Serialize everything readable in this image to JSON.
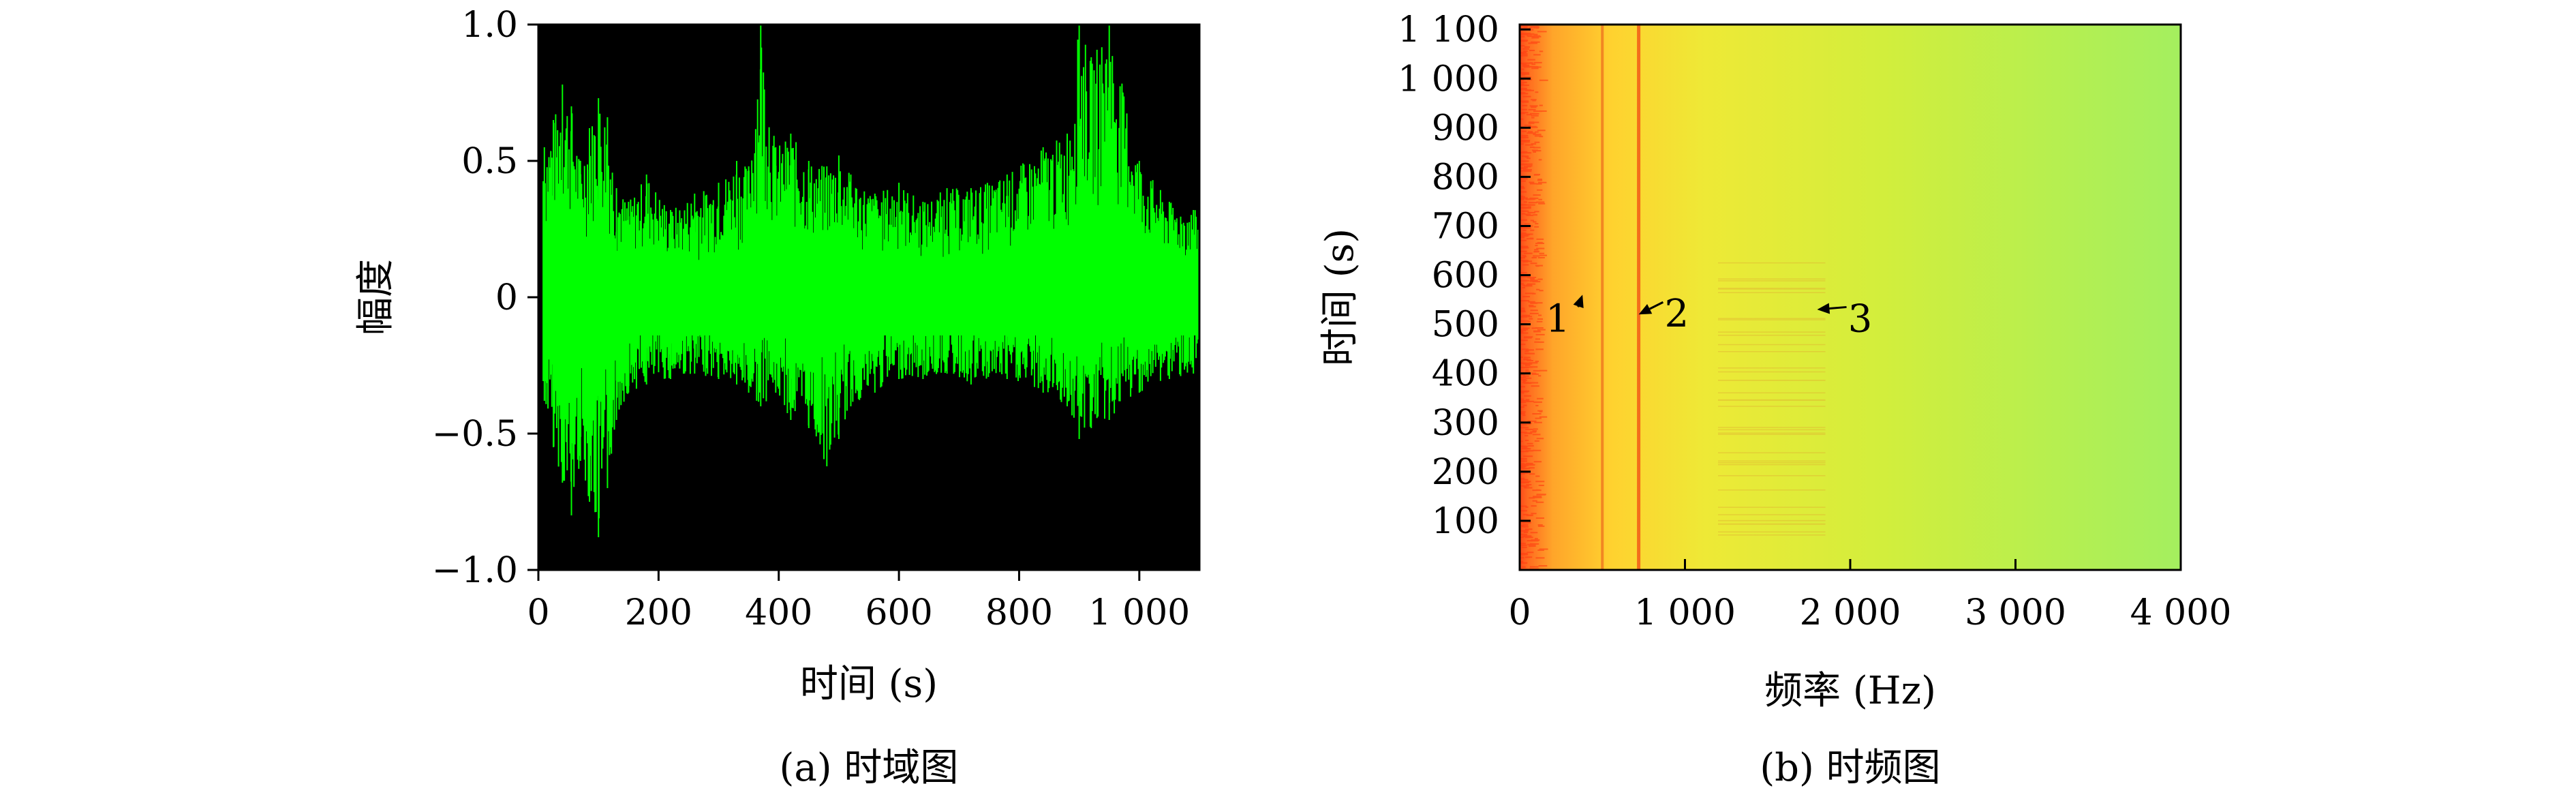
{
  "chart_data": [
    {
      "type": "line",
      "caption": "(a) 时域图",
      "xlabel": "时间 (s)",
      "ylabel": "幅度",
      "xlim": [
        0,
        1100
      ],
      "ylim": [
        -1.0,
        1.0
      ],
      "x_ticks": [
        0,
        200,
        400,
        600,
        800,
        1000
      ],
      "x_tick_labels": [
        "0",
        "200",
        "400",
        "600",
        "800",
        "1 000"
      ],
      "y_ticks": [
        -1.0,
        -0.5,
        0,
        0.5,
        1.0
      ],
      "y_tick_labels": [
        "−1.0",
        "−0.5",
        "0",
        "0.5",
        "1.0"
      ],
      "background": "#000000",
      "series": [
        {
          "color": "#00ff00",
          "envelope_baseline": [
            0.12,
            -0.14
          ],
          "x": [
            10,
            25,
            40,
            55,
            70,
            85,
            100,
            115,
            130,
            150,
            180,
            220,
            260,
            300,
            330,
            350,
            370,
            395,
            420,
            450,
            480,
            500,
            520,
            560,
            600,
            640,
            680,
            720,
            780,
            840,
            880,
            900,
            920,
            950,
            1000,
            1050,
            1090
          ],
          "peaks": [
            0.55,
            0.65,
            0.78,
            0.7,
            0.5,
            0.62,
            0.73,
            0.66,
            0.4,
            0.35,
            0.45,
            0.32,
            0.38,
            0.42,
            0.5,
            0.48,
            1.0,
            0.55,
            0.6,
            0.5,
            0.48,
            0.52,
            0.45,
            0.38,
            0.42,
            0.35,
            0.4,
            0.4,
            0.45,
            0.55,
            0.6,
            1.0,
            0.88,
            1.0,
            0.5,
            0.35,
            0.32
          ],
          "troughs": [
            -0.38,
            -0.55,
            -0.68,
            -0.8,
            -0.6,
            -0.75,
            -0.88,
            -0.7,
            -0.45,
            -0.35,
            -0.32,
            -0.3,
            -0.28,
            -0.3,
            -0.32,
            -0.35,
            -0.4,
            -0.35,
            -0.45,
            -0.48,
            -0.62,
            -0.52,
            -0.4,
            -0.35,
            -0.3,
            -0.3,
            -0.28,
            -0.32,
            -0.3,
            -0.35,
            -0.4,
            -0.52,
            -0.48,
            -0.45,
            -0.35,
            -0.3,
            -0.28
          ]
        }
      ]
    },
    {
      "type": "heatmap",
      "caption": "(b) 时频图",
      "xlabel": "频率 (Hz)",
      "ylabel": "时间 (s)",
      "xlim": [
        0,
        4000
      ],
      "ylim": [
        0,
        1110
      ],
      "x_ticks": [
        0,
        1000,
        2000,
        3000,
        4000
      ],
      "x_tick_labels": [
        "0",
        "1 000",
        "2 000",
        "3 000",
        "4 000"
      ],
      "y_ticks": [
        100,
        200,
        300,
        400,
        500,
        600,
        700,
        800,
        900,
        1000,
        1100
      ],
      "y_tick_labels": [
        "100",
        "200",
        "300",
        "400",
        "500",
        "600",
        "700",
        "800",
        "900",
        "1 000",
        "1 100"
      ],
      "colormap": [
        "#ff5a1f",
        "#ffb02a",
        "#f4e12f",
        "#d8ee3a",
        "#a8f060"
      ],
      "spectral_lines_hz": [
        500,
        720
      ],
      "annotations": [
        {
          "label": "1",
          "x": 230,
          "y": 510,
          "arrow_to": [
            380,
            560
          ]
        },
        {
          "label": "2",
          "x": 950,
          "y": 520,
          "arrow_to": [
            720,
            520
          ]
        },
        {
          "label": "3",
          "x": 2060,
          "y": 510,
          "arrow_to": [
            1800,
            530
          ]
        }
      ]
    }
  ]
}
